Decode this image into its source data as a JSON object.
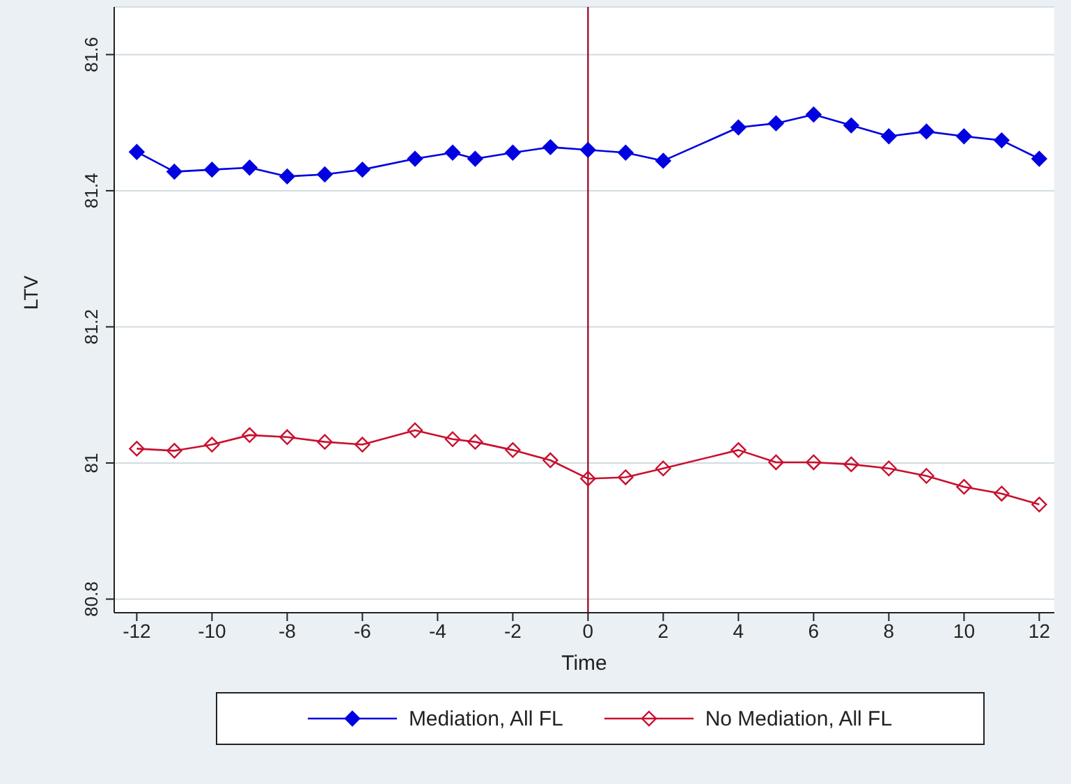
{
  "chart_data": {
    "type": "line",
    "xlabel": "Time",
    "ylabel": "LTV",
    "xlim": [
      -12.6,
      12.4
    ],
    "ylim": [
      80.78,
      81.67
    ],
    "xticks": [
      -12,
      -10,
      -8,
      -6,
      -4,
      -2,
      0,
      2,
      4,
      6,
      8,
      10,
      12
    ],
    "yticks": [
      80.8,
      81,
      81.2,
      81.4,
      81.6
    ],
    "grid": "y",
    "legend": "bottom",
    "marker": "diamond",
    "line_style": "solid",
    "ref_lines": [
      {
        "axis": "x",
        "value": 0,
        "color": "#a01030"
      }
    ],
    "series": [
      {
        "name": "Mediation, All FL",
        "color": "#0000e0",
        "x": [
          -12,
          -11,
          -10,
          -9,
          -8,
          -7,
          -6,
          -4.6,
          -3.6,
          -3,
          -2,
          -1,
          0,
          1,
          2,
          4,
          5,
          6,
          7,
          8,
          9,
          10,
          11,
          12
        ],
        "values": [
          81.457,
          81.428,
          81.431,
          81.434,
          81.421,
          81.424,
          81.431,
          81.447,
          81.456,
          81.447,
          81.456,
          81.464,
          81.46,
          81.456,
          81.444,
          81.493,
          81.499,
          81.512,
          81.496,
          81.48,
          81.487,
          81.48,
          81.474,
          81.447
        ]
      },
      {
        "name": "No Mediation, All FL",
        "color": "#c8102e",
        "x": [
          -12,
          -11,
          -10,
          -9,
          -8,
          -7,
          -6,
          -4.6,
          -3.6,
          -3,
          -2,
          -1,
          0,
          1,
          2,
          4,
          5,
          6,
          7,
          8,
          9,
          10,
          11,
          12
        ],
        "values": [
          81.021,
          81.018,
          81.027,
          81.041,
          81.038,
          81.031,
          81.027,
          81.048,
          81.035,
          81.031,
          81.019,
          81.004,
          80.977,
          80.979,
          80.992,
          81.019,
          81.001,
          81.001,
          80.998,
          80.992,
          80.981,
          80.965,
          80.955,
          80.939
        ]
      }
    ]
  }
}
